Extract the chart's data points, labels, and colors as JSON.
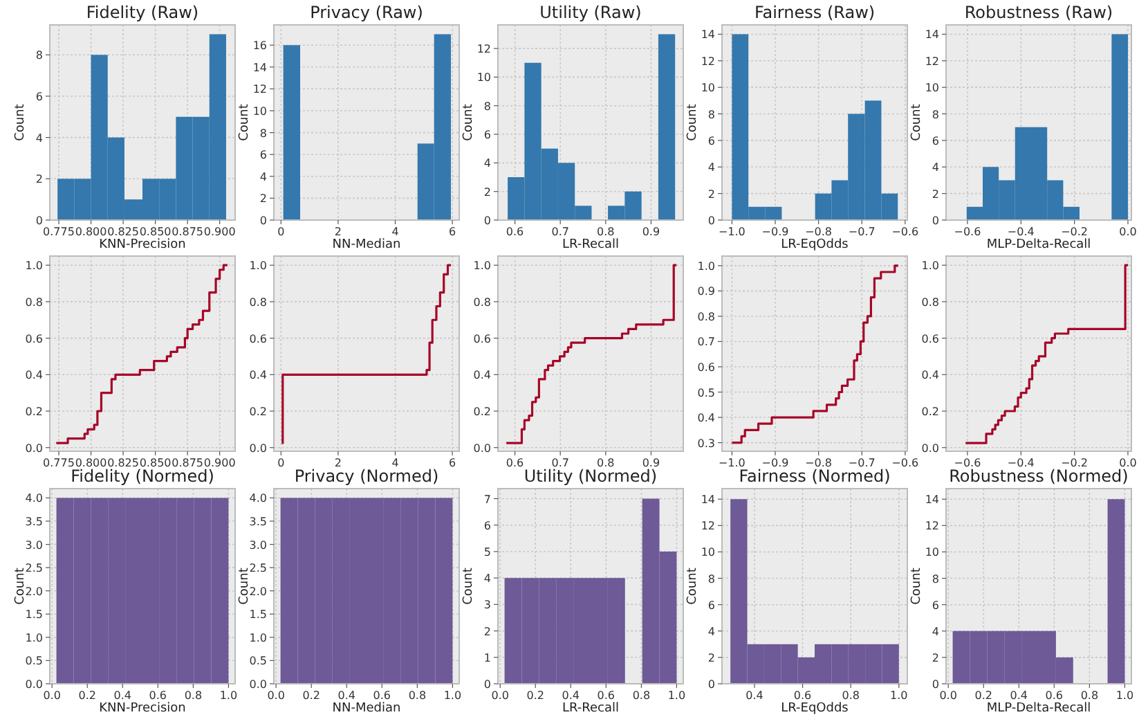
{
  "chart_data": [
    {
      "type": "histogram",
      "title": "Fidelity (Raw)",
      "xlabel": "KNN-Precision",
      "ylabel": "Count",
      "color": "#3478ad",
      "grid": true,
      "bins": [
        0.774,
        0.787,
        0.8,
        0.813,
        0.826,
        0.84,
        0.853,
        0.866,
        0.879,
        0.892,
        0.905
      ],
      "values": [
        2,
        2,
        8,
        4,
        1,
        2,
        2,
        5,
        5,
        9
      ],
      "xlim": [
        0.768,
        0.912
      ],
      "ylim": [
        0,
        9.45
      ],
      "xticks": [
        {
          "value": 0.775,
          "label": "0.775"
        },
        {
          "value": 0.8,
          "label": "0.800"
        },
        {
          "value": 0.825,
          "label": "0.825"
        },
        {
          "value": 0.85,
          "label": "0.850"
        },
        {
          "value": 0.875,
          "label": "0.875"
        },
        {
          "value": 0.9,
          "label": "0.900"
        }
      ],
      "yticks": [
        0,
        2,
        4,
        6,
        8
      ]
    },
    {
      "type": "histogram",
      "title": "Privacy (Raw)",
      "xlabel": "NN-Median",
      "ylabel": "Count",
      "color": "#3478ad",
      "grid": true,
      "bins": [
        0.08,
        0.67,
        1.25,
        1.84,
        2.43,
        3.02,
        3.6,
        4.19,
        4.78,
        5.36,
        5.95
      ],
      "values": [
        16,
        0,
        0,
        0,
        0,
        0,
        0,
        0,
        7,
        17
      ],
      "xlim": [
        -0.25,
        6.24
      ],
      "ylim": [
        0,
        17.85
      ],
      "xticks": [
        0,
        2,
        4,
        6
      ],
      "yticks": [
        0,
        2,
        4,
        6,
        8,
        10,
        12,
        14,
        16
      ]
    },
    {
      "type": "histogram",
      "title": "Utility (Raw)",
      "xlabel": "LR-Recall",
      "ylabel": "Count",
      "color": "#3478ad",
      "grid": true,
      "bins": [
        0.584,
        0.621,
        0.658,
        0.695,
        0.732,
        0.769,
        0.805,
        0.842,
        0.879,
        0.916,
        0.953
      ],
      "values": [
        3,
        11,
        5,
        4,
        1,
        0,
        1,
        2,
        0,
        13
      ],
      "xlim": [
        0.5625,
        0.971
      ],
      "ylim": [
        0,
        13.65
      ],
      "xticks": [
        0.6,
        0.7,
        0.8,
        0.9
      ],
      "yticks": [
        0,
        2,
        4,
        6,
        8,
        10,
        12
      ]
    },
    {
      "type": "histogram",
      "title": "Fairness (Raw)",
      "xlabel": "LR-EqOdds",
      "ylabel": "Count",
      "color": "#3478ad",
      "grid": true,
      "bins": [
        -1.0,
        -0.962,
        -0.923,
        -0.885,
        -0.808,
        -0.77,
        -0.732,
        -0.693,
        -0.655,
        -0.617
      ],
      "values": [
        14,
        1,
        1,
        0,
        2,
        3,
        8,
        9,
        2
      ],
      "xlim": [
        -1.023,
        -0.595
      ],
      "ylim": [
        0,
        14.7
      ],
      "xticks": [
        {
          "value": -1.0,
          "label": "−1.0"
        },
        {
          "value": -0.9,
          "label": "−0.9"
        },
        {
          "value": -0.8,
          "label": "−0.8"
        },
        {
          "value": -0.7,
          "label": "−0.7"
        },
        {
          "value": -0.6,
          "label": "−0.6"
        }
      ],
      "yticks": [
        0,
        2,
        4,
        6,
        8,
        10,
        12,
        14
      ]
    },
    {
      "type": "histogram",
      "title": "Robustness (Raw)",
      "xlabel": "MLP-Delta-Recall",
      "ylabel": "Count",
      "color": "#3478ad",
      "grid": true,
      "bins": [
        -0.603,
        -0.543,
        -0.483,
        -0.422,
        -0.362,
        -0.302,
        -0.242,
        -0.181,
        -0.121,
        -0.061,
        0.0
      ],
      "values": [
        1,
        4,
        3,
        7,
        7,
        3,
        1,
        0,
        0,
        14
      ],
      "xlim": [
        -0.68,
        0.013
      ],
      "ylim": [
        0,
        14.7
      ],
      "xticks": [
        {
          "value": -0.6,
          "label": "−0.6"
        },
        {
          "value": -0.4,
          "label": "−0.4"
        },
        {
          "value": -0.2,
          "label": "−0.2"
        },
        {
          "value": 0,
          "label": "0.0"
        }
      ],
      "yticks": [
        0,
        2,
        4,
        6,
        8,
        10,
        12,
        14
      ]
    },
    {
      "type": "step",
      "color": "#a60628",
      "grid": true,
      "x": [
        0.773,
        0.782,
        0.795,
        0.7975,
        0.8025,
        0.805,
        0.808,
        0.816,
        0.819,
        0.838,
        0.849,
        0.859,
        0.862,
        0.867,
        0.873,
        0.875,
        0.879,
        0.884,
        0.887,
        0.892,
        0.897,
        0.9,
        0.903,
        0.906
      ],
      "values": [
        0.025,
        0.05,
        0.075,
        0.1,
        0.125,
        0.2,
        0.3,
        0.375,
        0.4,
        0.425,
        0.475,
        0.5,
        0.525,
        0.55,
        0.6,
        0.65,
        0.675,
        0.7,
        0.75,
        0.85,
        0.925,
        0.975,
        1.0,
        1.0
      ],
      "xlim": [
        0.768,
        0.912
      ],
      "ylim": [
        -0.02,
        1.05
      ],
      "xticks": [
        {
          "value": 0.775,
          "label": "0.775"
        },
        {
          "value": 0.8,
          "label": "0.800"
        },
        {
          "value": 0.825,
          "label": "0.825"
        },
        {
          "value": 0.85,
          "label": "0.850"
        },
        {
          "value": 0.875,
          "label": "0.875"
        },
        {
          "value": 0.9,
          "label": "0.900"
        }
      ],
      "yticks": [
        {
          "value": 0,
          "label": "0.0"
        },
        0.2,
        0.4,
        0.6,
        0.8,
        {
          "value": 1,
          "label": "1.0"
        }
      ]
    },
    {
      "type": "step",
      "color": "#a60628",
      "grid": true,
      "x": [
        0.03,
        0.06,
        5.1,
        5.2,
        5.3,
        5.44,
        5.57,
        5.7,
        5.84,
        5.95
      ],
      "values": [
        0.025,
        0.4,
        0.425,
        0.575,
        0.7,
        0.775,
        0.85,
        0.95,
        1.0,
        1.0
      ],
      "xlim": [
        -0.25,
        6.24
      ],
      "ylim": [
        -0.02,
        1.05
      ],
      "xticks": [
        0,
        2,
        4,
        6
      ],
      "yticks": [
        {
          "value": 0,
          "label": "0.0"
        },
        0.2,
        0.4,
        0.6,
        0.8,
        {
          "value": 1,
          "label": "1.0"
        }
      ]
    },
    {
      "type": "step",
      "color": "#a60628",
      "grid": true,
      "x": [
        0.581,
        0.615,
        0.621,
        0.631,
        0.638,
        0.646,
        0.653,
        0.666,
        0.673,
        0.684,
        0.699,
        0.709,
        0.717,
        0.724,
        0.754,
        0.836,
        0.85,
        0.867,
        0.927,
        0.95,
        0.956
      ],
      "values": [
        0.025,
        0.1,
        0.15,
        0.175,
        0.25,
        0.275,
        0.375,
        0.425,
        0.45,
        0.475,
        0.5,
        0.525,
        0.55,
        0.575,
        0.6,
        0.625,
        0.65,
        0.675,
        0.7,
        1.0,
        1.0
      ],
      "xlim": [
        0.5625,
        0.971
      ],
      "ylim": [
        -0.02,
        1.05
      ],
      "xticks": [
        0.6,
        0.7,
        0.8,
        0.9
      ],
      "yticks": [
        {
          "value": 0,
          "label": "0.0"
        },
        0.2,
        0.4,
        0.6,
        0.8,
        {
          "value": 1,
          "label": "1.0"
        }
      ]
    },
    {
      "type": "step",
      "color": "#a60628",
      "grid": true,
      "x": [
        -1.0,
        -0.978,
        -0.97,
        -0.939,
        -0.908,
        -0.812,
        -0.781,
        -0.76,
        -0.753,
        -0.746,
        -0.733,
        -0.718,
        -0.711,
        -0.703,
        -0.696,
        -0.687,
        -0.679,
        -0.671,
        -0.656,
        -0.624,
        -0.616
      ],
      "values": [
        0.3,
        0.325,
        0.35,
        0.375,
        0.4,
        0.425,
        0.45,
        0.475,
        0.5,
        0.525,
        0.55,
        0.625,
        0.65,
        0.7,
        0.775,
        0.8,
        0.875,
        0.95,
        0.975,
        1.0,
        1.0
      ],
      "xlim": [
        -1.023,
        -0.595
      ],
      "ylim": [
        0.266,
        1.038
      ],
      "xticks": [
        {
          "value": -1.0,
          "label": "−1.0"
        },
        {
          "value": -0.9,
          "label": "−0.9"
        },
        {
          "value": -0.8,
          "label": "−0.8"
        },
        {
          "value": -0.7,
          "label": "−0.7"
        },
        {
          "value": -0.6,
          "label": "−0.6"
        }
      ],
      "yticks": [
        0.3,
        0.4,
        0.5,
        0.6,
        0.7,
        0.8,
        0.9,
        {
          "value": 1,
          "label": "1.0"
        }
      ]
    },
    {
      "type": "step",
      "color": "#a60628",
      "grid": true,
      "x": [
        -0.607,
        -0.53,
        -0.507,
        -0.496,
        -0.485,
        -0.472,
        -0.46,
        -0.423,
        -0.411,
        -0.4,
        -0.38,
        -0.369,
        -0.358,
        -0.345,
        -0.333,
        -0.309,
        -0.285,
        -0.273,
        -0.223,
        -0.01,
        0.0
      ],
      "values": [
        0.025,
        0.075,
        0.1,
        0.125,
        0.15,
        0.175,
        0.2,
        0.225,
        0.275,
        0.3,
        0.325,
        0.375,
        0.45,
        0.475,
        0.5,
        0.575,
        0.6,
        0.625,
        0.65,
        1.0,
        1.0
      ],
      "xlim": [
        -0.68,
        0.013
      ],
      "ylim": [
        -0.02,
        1.05
      ],
      "xticks": [
        {
          "value": -0.6,
          "label": "−0.6"
        },
        {
          "value": -0.4,
          "label": "−0.4"
        },
        {
          "value": -0.2,
          "label": "−0.2"
        },
        {
          "value": 0,
          "label": "0.0"
        }
      ],
      "yticks": [
        {
          "value": 0,
          "label": "0.0"
        },
        0.2,
        0.4,
        0.6,
        0.8,
        {
          "value": 1,
          "label": "1.0"
        }
      ]
    },
    {
      "type": "histogram",
      "title": "Fidelity (Normed)",
      "xlabel": "KNN-Precision",
      "ylabel": "Count",
      "color": "#6d5a97",
      "grid": true,
      "bins": [
        0.025,
        0.1225,
        0.22,
        0.3175,
        0.415,
        0.5125,
        0.61,
        0.7075,
        0.805,
        0.9025,
        1.0
      ],
      "values": [
        4,
        4,
        4,
        4,
        4,
        4,
        4,
        4,
        4,
        4
      ],
      "xlim": [
        -0.0125,
        1.0375
      ],
      "ylim": [
        0,
        4.2
      ],
      "xticks": [
        {
          "value": 0,
          "label": "0.0"
        },
        0.2,
        0.4,
        0.6,
        0.8,
        {
          "value": 1,
          "label": "1.0"
        }
      ],
      "yticks": [
        {
          "value": 0,
          "label": "0.0"
        },
        0.5,
        {
          "value": 1,
          "label": "1.0"
        },
        1.5,
        {
          "value": 2,
          "label": "2.0"
        },
        2.5,
        {
          "value": 3,
          "label": "3.0"
        },
        3.5,
        {
          "value": 4,
          "label": "4.0"
        }
      ]
    },
    {
      "type": "histogram",
      "title": "Privacy (Normed)",
      "xlabel": "NN-Median",
      "ylabel": "Count",
      "color": "#6d5a97",
      "grid": true,
      "bins": [
        0.025,
        0.1225,
        0.22,
        0.3175,
        0.415,
        0.5125,
        0.61,
        0.7075,
        0.805,
        0.9025,
        1.0
      ],
      "values": [
        4,
        4,
        4,
        4,
        4,
        4,
        4,
        4,
        4,
        4
      ],
      "xlim": [
        -0.0125,
        1.0375
      ],
      "ylim": [
        0,
        4.2
      ],
      "xticks": [
        {
          "value": 0,
          "label": "0.0"
        },
        0.2,
        0.4,
        0.6,
        0.8,
        {
          "value": 1,
          "label": "1.0"
        }
      ],
      "yticks": [
        {
          "value": 0,
          "label": "0.0"
        },
        0.5,
        {
          "value": 1,
          "label": "1.0"
        },
        1.5,
        {
          "value": 2,
          "label": "2.0"
        },
        2.5,
        {
          "value": 3,
          "label": "3.0"
        },
        3.5,
        {
          "value": 4,
          "label": "4.0"
        }
      ]
    },
    {
      "type": "histogram",
      "title": "Utility (Normed)",
      "xlabel": "LR-Recall",
      "ylabel": "Count",
      "color": "#6d5a97",
      "grid": true,
      "bins": [
        0.025,
        0.1225,
        0.22,
        0.3175,
        0.415,
        0.5125,
        0.61,
        0.7075,
        0.805,
        0.9025,
        1.0
      ],
      "values": [
        4,
        4,
        4,
        4,
        4,
        4,
        4,
        0,
        7,
        5
      ],
      "xlim": [
        -0.0125,
        1.0375
      ],
      "ylim": [
        0,
        7.38
      ],
      "xticks": [
        {
          "value": 0,
          "label": "0.0"
        },
        0.2,
        0.4,
        0.6,
        0.8,
        {
          "value": 1,
          "label": "1.0"
        }
      ],
      "yticks": [
        0,
        1,
        2,
        3,
        4,
        5,
        6,
        7
      ]
    },
    {
      "type": "histogram",
      "title": "Fairness (Normed)",
      "xlabel": "LR-EqOdds",
      "ylabel": "Count",
      "color": "#6d5a97",
      "grid": true,
      "bins": [
        0.3,
        0.37,
        0.44,
        0.51,
        0.58,
        0.65,
        0.72,
        0.79,
        0.86,
        0.93,
        1.0
      ],
      "values": [
        14,
        3,
        3,
        3,
        2,
        3,
        3,
        3,
        3,
        3
      ],
      "xlim": [
        0.265,
        1.035
      ],
      "ylim": [
        0,
        14.8
      ],
      "xticks": [
        0.4,
        0.6,
        0.8,
        {
          "value": 1,
          "label": "1.0"
        }
      ],
      "yticks": [
        0,
        2,
        4,
        6,
        8,
        10,
        12,
        14
      ]
    },
    {
      "type": "histogram",
      "title": "Robustness (Normed)",
      "xlabel": "MLP-Delta-Recall",
      "ylabel": "Count",
      "color": "#6d5a97",
      "grid": true,
      "bins": [
        0.025,
        0.1225,
        0.22,
        0.3175,
        0.415,
        0.5125,
        0.61,
        0.7075,
        0.805,
        0.9025,
        1.0
      ],
      "values": [
        4,
        4,
        4,
        4,
        4,
        4,
        2,
        0,
        0,
        14
      ],
      "xlim": [
        -0.0125,
        1.0375
      ],
      "ylim": [
        0,
        14.8
      ],
      "xticks": [
        {
          "value": 0,
          "label": "0.0"
        },
        0.2,
        0.4,
        0.6,
        0.8,
        {
          "value": 1,
          "label": "1.0"
        }
      ],
      "yticks": [
        0,
        2,
        4,
        6,
        8,
        10,
        12,
        14
      ]
    }
  ]
}
